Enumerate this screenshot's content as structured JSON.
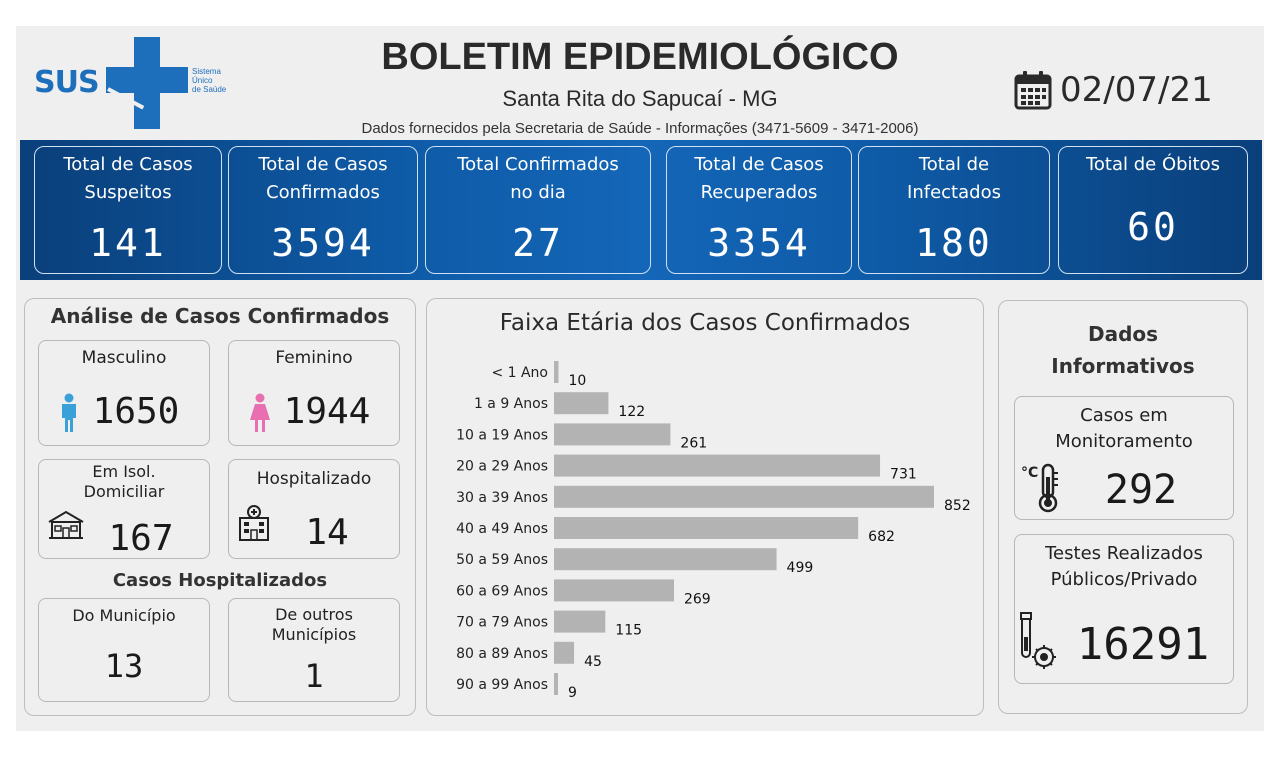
{
  "header": {
    "logo_text": "SUS",
    "logo_sub": [
      "Sistema",
      "Único",
      "de Saúde"
    ],
    "title": "BOLETIM EPIDEMIOLÓGICO",
    "city": "Santa Rita do Sapucaí - MG",
    "source": "Dados fornecidos pela Secretaria de Saúde - Informações (3471-5609 - 3471-2006)",
    "date": "02/07/21",
    "date_icon": "calendar-icon"
  },
  "stats": [
    {
      "label1": "Total de Casos",
      "label2": "Suspeitos",
      "value": "141"
    },
    {
      "label1": "Total de Casos",
      "label2": "Confirmados",
      "value": "3594"
    },
    {
      "label1": "Total Confirmados",
      "label2": "no dia",
      "value": "27"
    },
    {
      "label1": "Total de Casos",
      "label2": "Recuperados",
      "value": "3354"
    },
    {
      "label1": "Total de",
      "label2": "Infectados",
      "value": "180"
    },
    {
      "label1": "Total de Óbitos",
      "label2": "",
      "value": "60"
    }
  ],
  "analysis": {
    "title": "Análise de Casos Confirmados",
    "male": {
      "label": "Masculino",
      "value": "1650",
      "icon": "male-icon",
      "icon_color": "#3aa0d8"
    },
    "female": {
      "label": "Feminino",
      "value": "1944",
      "icon": "female-icon",
      "icon_color": "#e86fb0"
    },
    "isolation": {
      "label1": "Em Isol.",
      "label2": "Domiciliar",
      "value": "167",
      "icon": "house-icon"
    },
    "hospitalized": {
      "label": "Hospitalizado",
      "value": "14",
      "icon": "hospital-icon"
    },
    "hosp_title": "Casos Hospitalizados",
    "municipality": {
      "label": "Do Município",
      "value": "13"
    },
    "other": {
      "label1": "De outros",
      "label2": "Municípios",
      "value": "1"
    }
  },
  "chart_data": {
    "type": "bar",
    "orientation": "horizontal",
    "title": "Faixa Etária dos Casos Confirmados",
    "categories": [
      "< 1 Ano",
      "1 a 9 Anos",
      "10 a 19 Anos",
      "20 a 29 Anos",
      "30 a 39 Anos",
      "40 a 49 Anos",
      "50 a 59 Anos",
      "60 a 69 Anos",
      "70 a 79 Anos",
      "80 a 89 Anos",
      "90 a 99 Anos"
    ],
    "values": [
      10,
      122,
      261,
      731,
      852,
      682,
      499,
      269,
      115,
      45,
      9
    ],
    "bar_color": "#b3b3b3",
    "data_labels": true,
    "grid": false
  },
  "info": {
    "title1": "Dados",
    "title2": "Informativos",
    "monitoring": {
      "label1": "Casos em",
      "label2": "Monitoramento",
      "value": "292",
      "icon": "thermometer-icon"
    },
    "tests": {
      "label1": "Testes Realizados",
      "label2": "Públicos/Privado",
      "value": "16291",
      "icon": "test-tube-virus-icon"
    }
  }
}
